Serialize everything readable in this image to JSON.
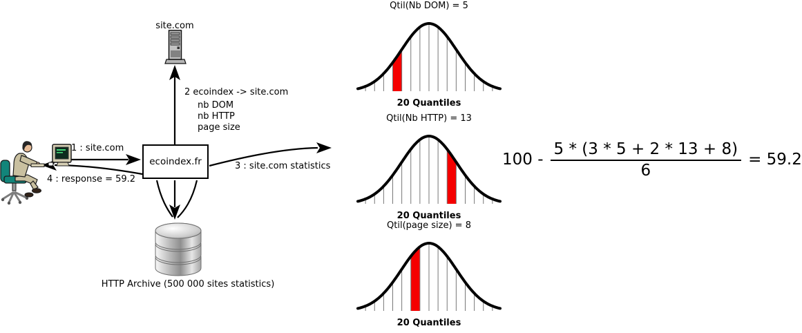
{
  "colors": {
    "highlight_red": "#f50000",
    "gridline_gray": "#777777",
    "line_black": "#000000",
    "chair_teal": "#12857a"
  },
  "flow": {
    "server_label": "site.com",
    "request_label": "1 : site.com",
    "response_label": "4 : response = 59.2",
    "engine_label": "ecoindex.fr",
    "crawl_label": "2 ecoindex -> site.com",
    "crawl_items": [
      "nb DOM",
      "nb HTTP",
      "page size"
    ],
    "stats_label": "3 : site.com statistics",
    "database_label": "HTTP Archive (500 000 sites statistics)"
  },
  "formula": {
    "prefix": "100 -",
    "numerator": "5 * (3 * 5 + 2 * 13 + 8)",
    "denominator": "6",
    "result": "= 59.2"
  },
  "chart_data": [
    {
      "type": "area",
      "title": "Qtil(Nb DOM) = 5",
      "xlabel": "20 Quantiles",
      "distribution": "gaussian",
      "total_quantiles": 20,
      "highlight_quantile": 5,
      "highlight_color": "#f50000"
    },
    {
      "type": "area",
      "title": "Qtil(Nb HTTP) = 13",
      "xlabel": "20 Quantiles",
      "distribution": "gaussian",
      "total_quantiles": 20,
      "highlight_quantile": 13,
      "highlight_color": "#f50000"
    },
    {
      "type": "area",
      "title": "Qtil(page size) = 8",
      "xlabel": "20 Quantiles",
      "distribution": "gaussian",
      "total_quantiles": 20,
      "highlight_quantile": 8,
      "highlight_color": "#f50000"
    }
  ]
}
